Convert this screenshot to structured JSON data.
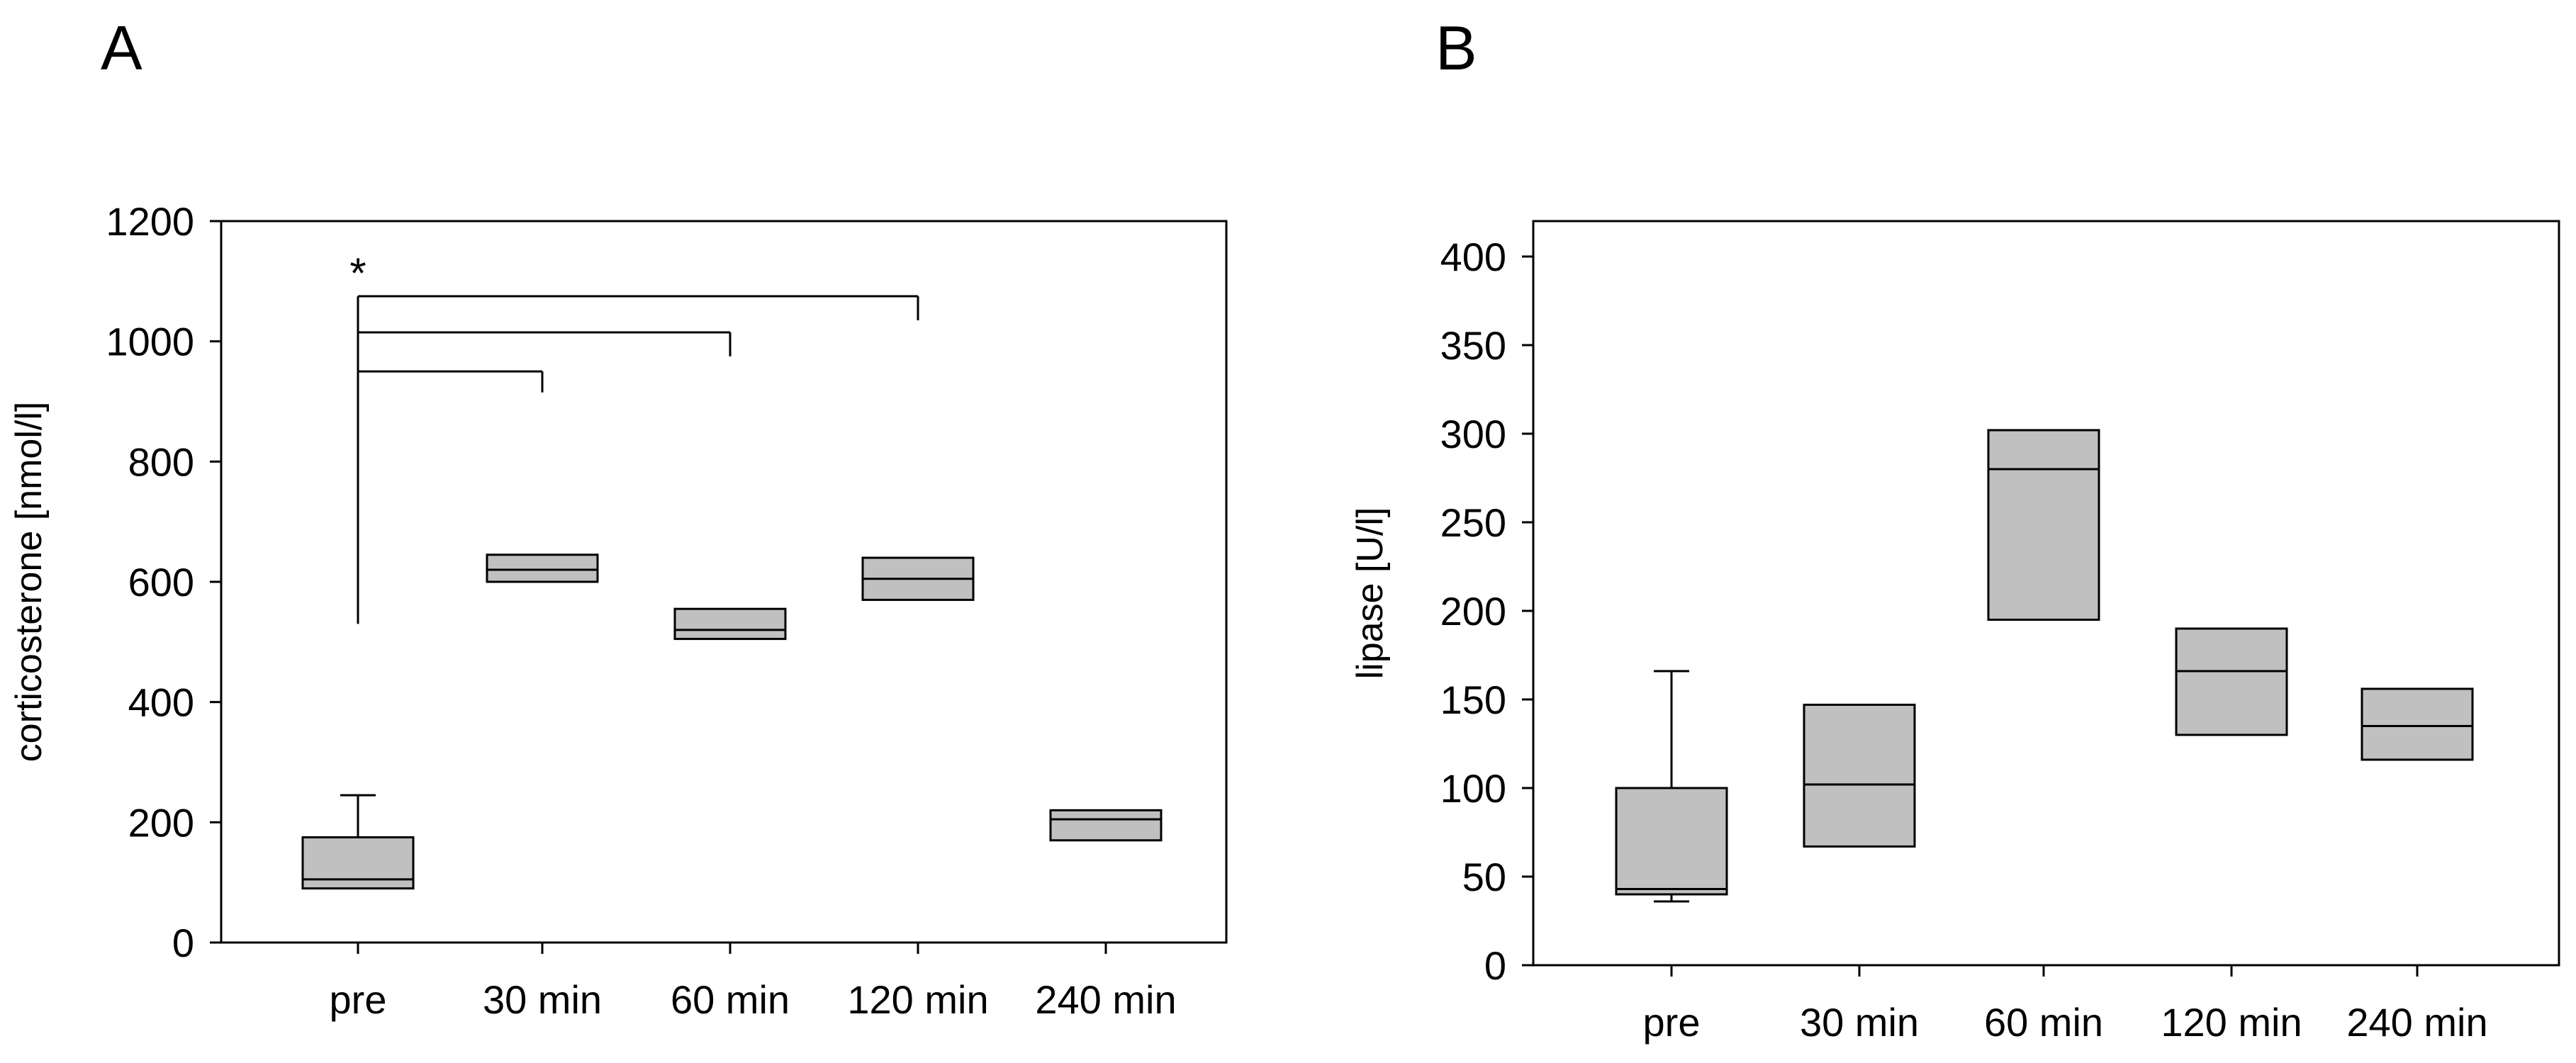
{
  "figure": {
    "panels": [
      "A",
      "B"
    ]
  },
  "chart_data": [
    {
      "panel": "A",
      "type": "box",
      "title": "",
      "xlabel": "",
      "ylabel": "corticosterone [nmol/l]",
      "categories": [
        "pre",
        "30 min",
        "60 min",
        "120 min",
        "240 min"
      ],
      "ylim": [
        0,
        1200
      ],
      "yticks": [
        0,
        200,
        400,
        600,
        800,
        1000,
        1200
      ],
      "boxes": [
        {
          "q1": 90,
          "median": 105,
          "q3": 175,
          "whisker_low": 90,
          "whisker_high": 245
        },
        {
          "q1": 600,
          "median": 620,
          "q3": 645,
          "whisker_low": 600,
          "whisker_high": 645
        },
        {
          "q1": 505,
          "median": 520,
          "q3": 555,
          "whisker_low": 505,
          "whisker_high": 555
        },
        {
          "q1": 570,
          "median": 605,
          "q3": 640,
          "whisker_low": 570,
          "whisker_high": 640
        },
        {
          "q1": 170,
          "median": 205,
          "q3": 220,
          "whisker_low": 170,
          "whisker_high": 220
        }
      ],
      "significance": {
        "marker": "*",
        "from": "pre",
        "from_y": 530,
        "comparisons": [
          {
            "to": "30 min",
            "y": 950,
            "drop_to": 915
          },
          {
            "to": "60 min",
            "y": 1015,
            "drop_to": 975
          },
          {
            "to": "120 min",
            "y": 1075,
            "drop_to": 1035
          }
        ]
      }
    },
    {
      "panel": "B",
      "type": "box",
      "title": "",
      "xlabel": "",
      "ylabel": "lipase [U/l]",
      "categories": [
        "pre",
        "30 min",
        "60 min",
        "120 min",
        "240 min"
      ],
      "ylim": [
        0,
        420
      ],
      "yticks": [
        0,
        50,
        100,
        150,
        200,
        250,
        300,
        350,
        400
      ],
      "boxes": [
        {
          "q1": 40,
          "median": 43,
          "q3": 100,
          "whisker_low": 36,
          "whisker_high": 166
        },
        {
          "q1": 67,
          "median": 102,
          "q3": 147,
          "whisker_low": 67,
          "whisker_high": 147
        },
        {
          "q1": 195,
          "median": 280,
          "q3": 302,
          "whisker_low": 195,
          "whisker_high": 302
        },
        {
          "q1": 130,
          "median": 166,
          "q3": 190,
          "whisker_low": 130,
          "whisker_high": 190
        },
        {
          "q1": 116,
          "median": 135,
          "q3": 156,
          "whisker_low": 116,
          "whisker_high": 156
        }
      ]
    }
  ]
}
